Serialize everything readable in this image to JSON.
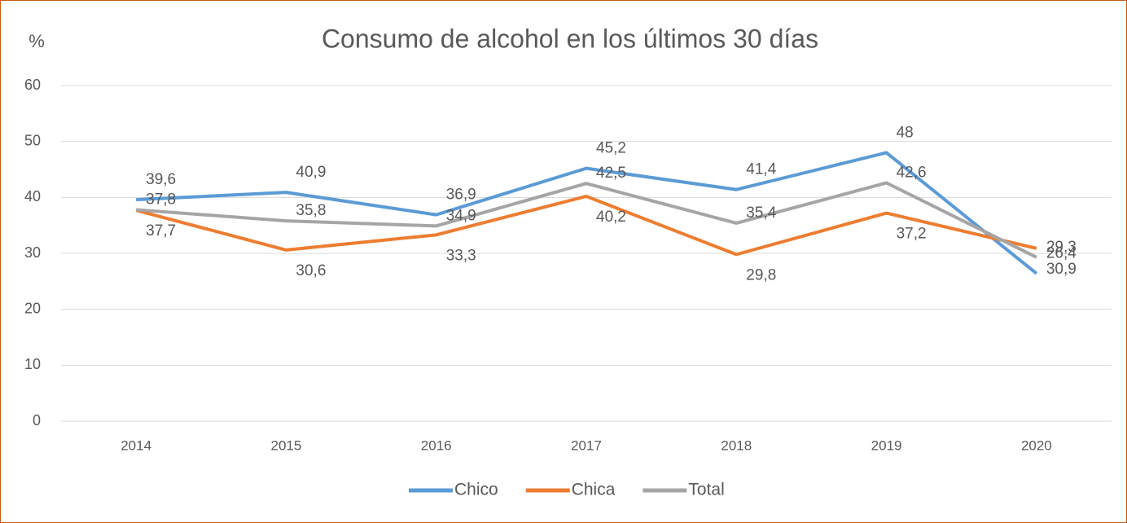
{
  "chart_data": {
    "type": "line",
    "title": "Consumo de alcohol en los últimos 30 días",
    "y_axis_label": "%",
    "categories": [
      "2014",
      "2015",
      "2016",
      "2017",
      "2018",
      "2019",
      "2020"
    ],
    "series": [
      {
        "name": "Chico",
        "color": "#5b9bd5",
        "values": [
          39.6,
          40.9,
          36.9,
          45.2,
          41.4,
          48,
          26.4
        ],
        "value_labels": [
          "39,6",
          "40,9",
          "36,9",
          "45,2",
          "41,4",
          "48",
          "26,4"
        ]
      },
      {
        "name": "Chica",
        "color": "#ed7d31",
        "values": [
          37.7,
          30.6,
          33.3,
          40.2,
          29.8,
          37.2,
          30.9
        ],
        "value_labels": [
          "37,7",
          "30,6",
          "33,3",
          "40,2",
          "29,8",
          "37,2",
          "30,9"
        ]
      },
      {
        "name": "Total",
        "color": "#a5a5a5",
        "values": [
          37.8,
          35.8,
          34.9,
          42.5,
          35.4,
          42.6,
          29.3
        ],
        "value_labels": [
          "37,8",
          "35,8",
          "34,9",
          "42,5",
          "35,4",
          "42,6",
          "29,3"
        ]
      }
    ],
    "ylim": [
      0,
      60
    ],
    "yticks": [
      0,
      10,
      20,
      30,
      40,
      50,
      60
    ],
    "grid": true,
    "legend": "bottom"
  }
}
